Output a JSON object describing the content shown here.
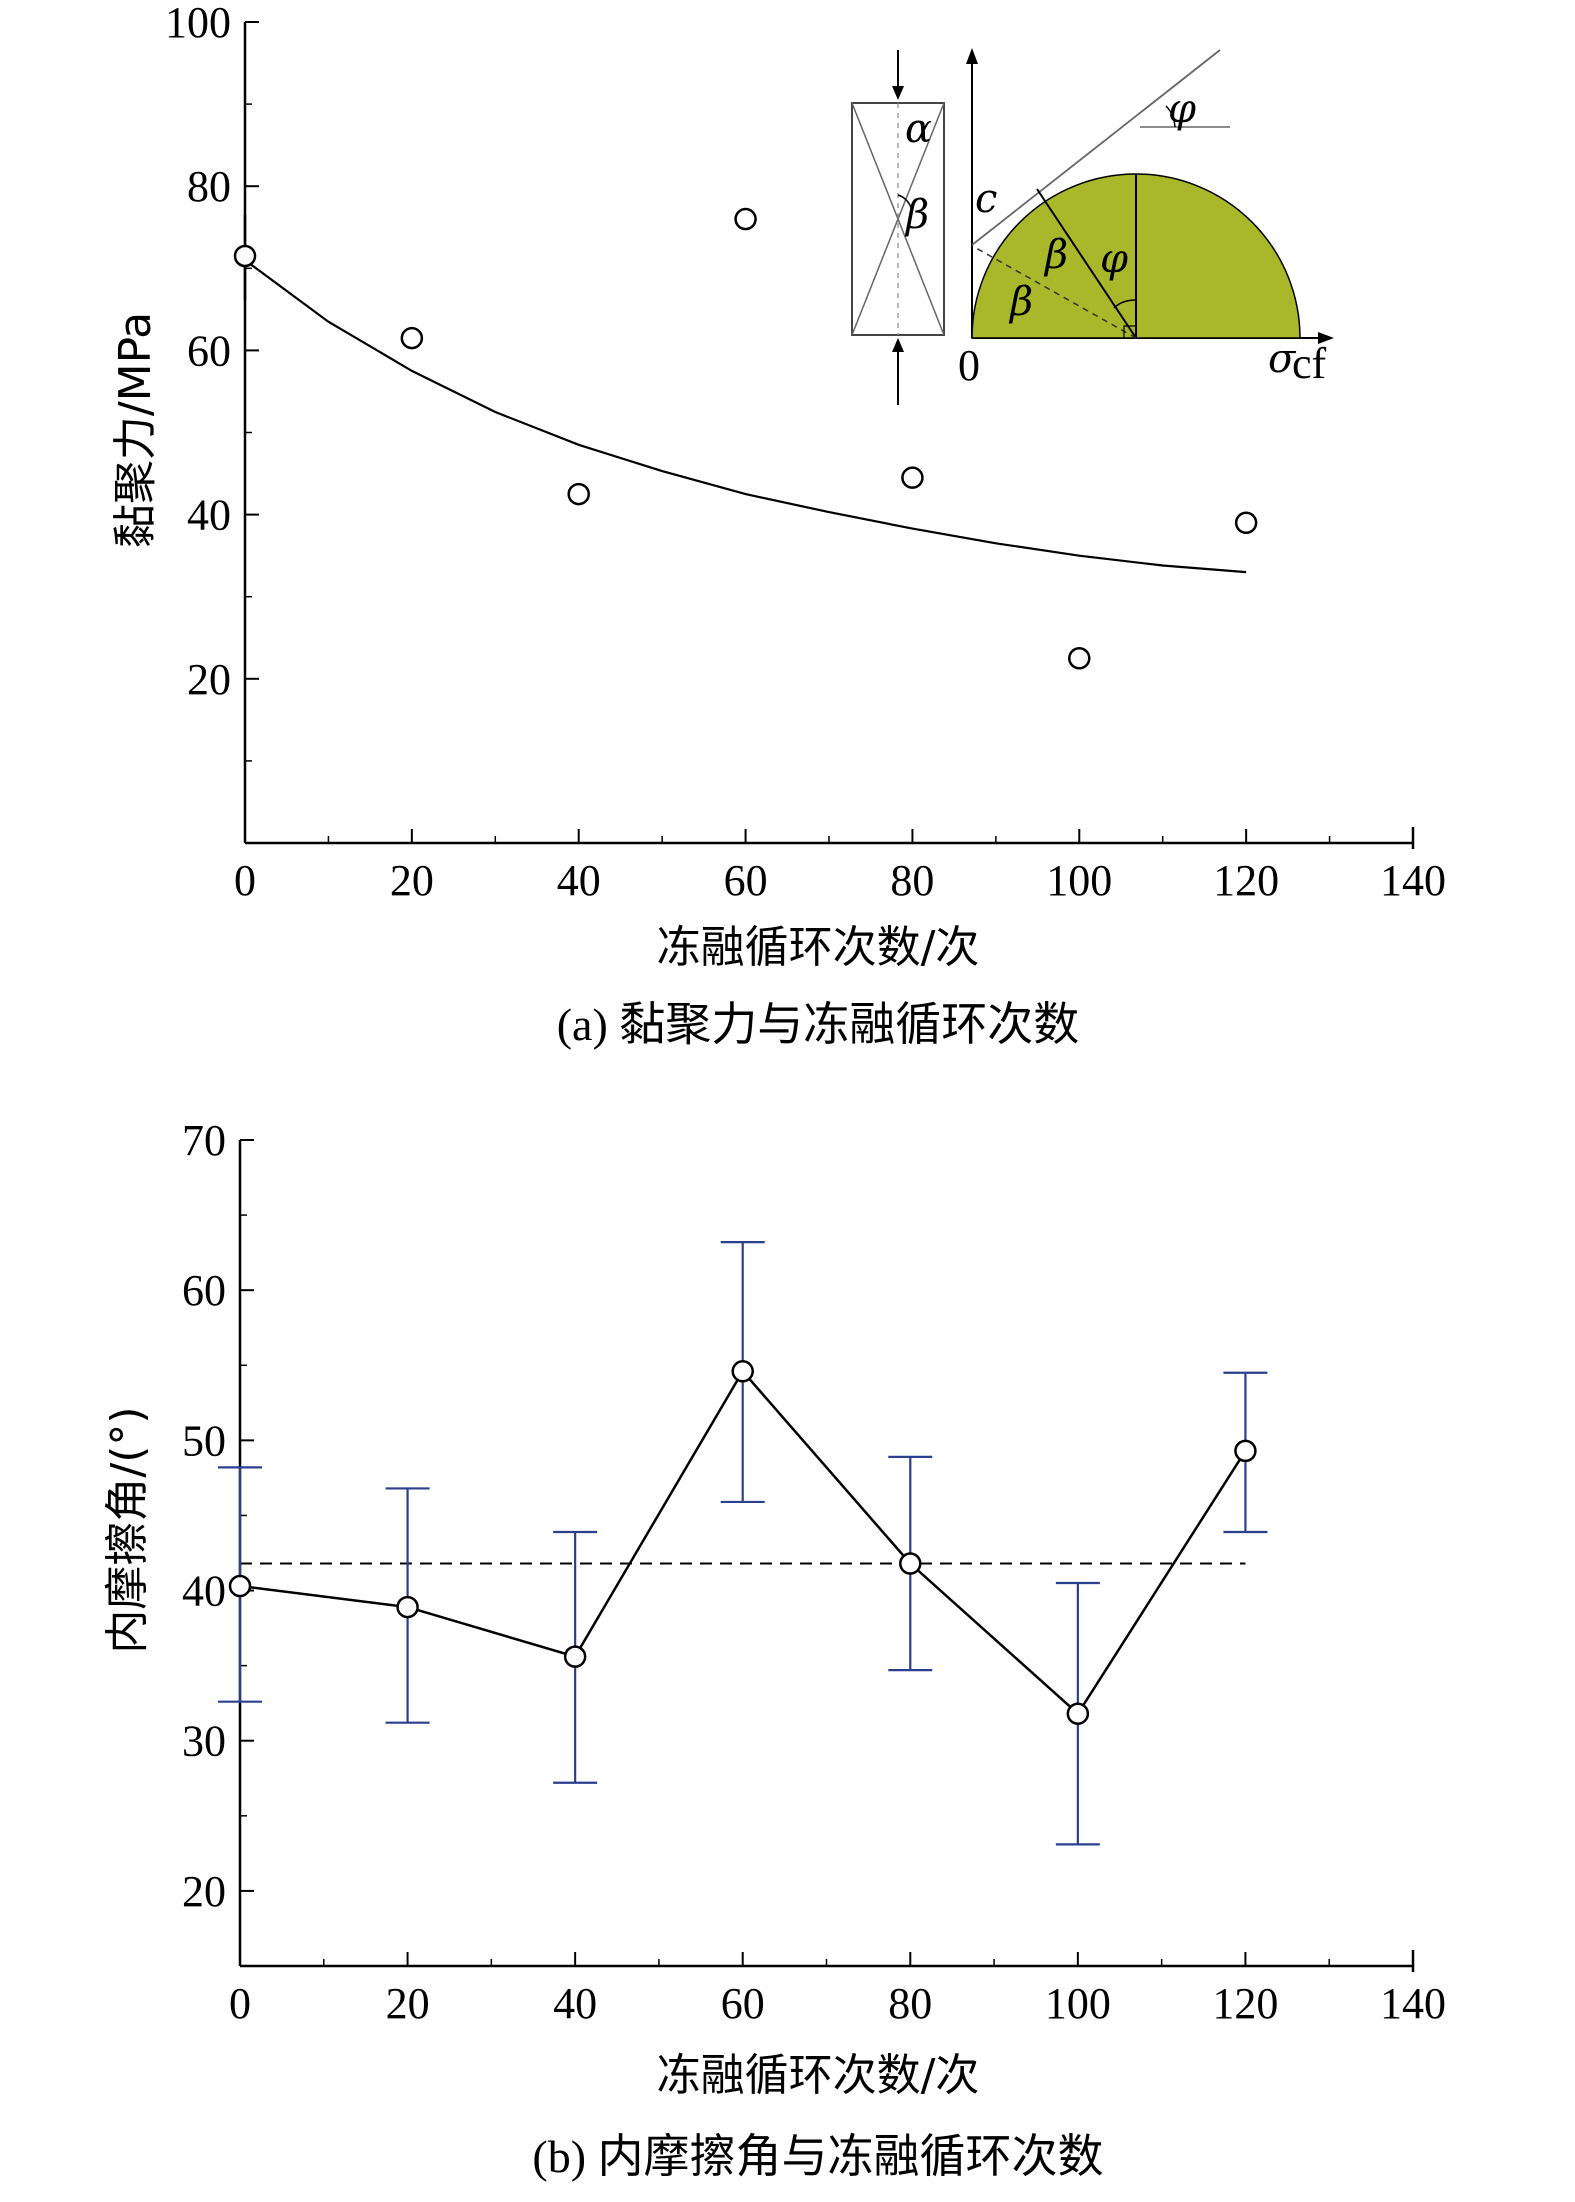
{
  "chart_data": [
    {
      "type": "scatter",
      "caption": "(a) 黏聚力与冻融循环次数",
      "xlabel": "冻融循环次数/次",
      "ylabel": "黏聚力/MPa",
      "xlim": [
        0,
        140
      ],
      "ylim": [
        0,
        100
      ],
      "x_ticks": [
        "0",
        "20",
        "40",
        "60",
        "80",
        "100",
        "120",
        "140"
      ],
      "y_ticks": [
        "20",
        "40",
        "60",
        "80",
        "100"
      ],
      "series": [
        {
          "kind": "points",
          "marker": "open-circle",
          "x": [
            0,
            20,
            40,
            60,
            80,
            100,
            120
          ],
          "y": [
            71.5,
            61.5,
            42.5,
            76.0,
            44.5,
            22.5,
            39.0
          ]
        },
        {
          "kind": "fit-curve",
          "style": "solid",
          "x": [
            0,
            10,
            20,
            30,
            40,
            50,
            60,
            70,
            80,
            90,
            100,
            110,
            120
          ],
          "y": [
            71.0,
            63.5,
            57.5,
            52.5,
            48.5,
            45.3,
            42.5,
            40.3,
            38.3,
            36.5,
            35.0,
            33.8,
            33.0
          ]
        }
      ],
      "inset": {
        "labels": {
          "alpha": "α",
          "beta": "β",
          "phi": "φ",
          "c": "c",
          "origin": "0",
          "sigma": "σ",
          "sigma_sub": "cf"
        },
        "fill_color": "#a9b72a"
      }
    },
    {
      "type": "line",
      "caption": "(b) 内摩擦角与冻融循环次数",
      "xlabel": "冻融循环次数/次",
      "ylabel": "内摩擦角/(°)",
      "xlim": [
        0,
        140
      ],
      "ylim": [
        15,
        70
      ],
      "x_ticks": [
        "0",
        "20",
        "40",
        "60",
        "80",
        "100",
        "120",
        "140"
      ],
      "y_ticks": [
        "20",
        "30",
        "40",
        "50",
        "60",
        "70"
      ],
      "series": [
        {
          "kind": "line-points",
          "marker": "open-circle",
          "x": [
            0,
            20,
            40,
            60,
            80,
            100,
            120
          ],
          "y": [
            40.3,
            38.9,
            35.6,
            54.6,
            41.8,
            31.8,
            49.3
          ],
          "err_low": [
            32.6,
            31.2,
            27.2,
            45.9,
            34.7,
            23.1,
            43.9
          ],
          "err_high": [
            48.2,
            46.8,
            43.9,
            63.2,
            48.9,
            40.5,
            54.5
          ],
          "error_color": "#2b3f8f"
        },
        {
          "kind": "mean-line",
          "style": "dashed",
          "y": 41.8,
          "x_range": [
            0,
            120
          ]
        }
      ]
    }
  ]
}
